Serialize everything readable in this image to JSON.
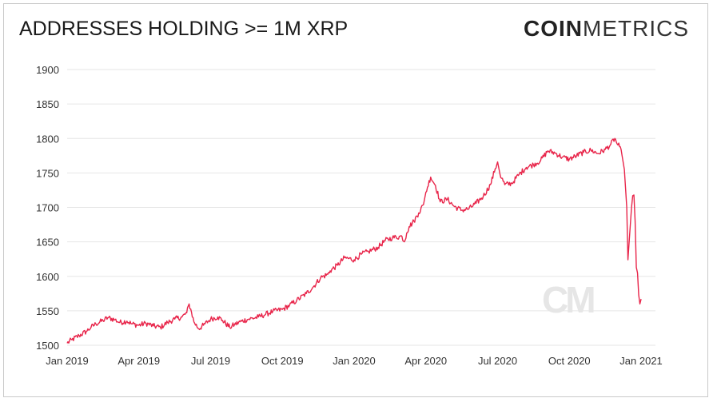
{
  "header": {
    "title": "ADDRESSES HOLDING >= 1M XRP",
    "brand_bold": "COIN",
    "brand_light": "METRICS",
    "watermark": "CM"
  },
  "chart_data": {
    "type": "line",
    "title": "ADDRESSES HOLDING >= 1M XRP",
    "xlabel": "",
    "ylabel": "",
    "ylim": [
      1500,
      1900
    ],
    "yticks": [
      1500,
      1550,
      1600,
      1650,
      1700,
      1750,
      1800,
      1850,
      1900
    ],
    "xlim": [
      0,
      24.6
    ],
    "xticks": [
      {
        "label": "Jan 2019",
        "month": 0
      },
      {
        "label": "Apr 2019",
        "month": 3
      },
      {
        "label": "Jul 2019",
        "month": 6
      },
      {
        "label": "Oct 2019",
        "month": 9
      },
      {
        "label": "Jan 2020",
        "month": 12
      },
      {
        "label": "Apr 2020",
        "month": 15
      },
      {
        "label": "Jul 2020",
        "month": 18
      },
      {
        "label": "Oct 2020",
        "month": 21
      },
      {
        "label": "Jan 2021",
        "month": 24
      }
    ],
    "grid": true,
    "line_color": "#e8254a",
    "series": [
      {
        "name": "Addresses holding >= 1M XRP",
        "x": [
          0,
          0.2,
          0.5,
          0.8,
          1.0,
          1.2,
          1.5,
          1.7,
          2.0,
          2.2,
          2.5,
          2.7,
          3.0,
          3.3,
          3.6,
          3.9,
          4.2,
          4.5,
          4.8,
          5.0,
          5.1,
          5.2,
          5.3,
          5.5,
          5.7,
          6.0,
          6.3,
          6.5,
          6.8,
          7.0,
          7.3,
          7.6,
          8.0,
          8.3,
          8.6,
          9.0,
          9.3,
          9.6,
          10.0,
          10.3,
          10.6,
          10.9,
          11.0,
          11.3,
          11.6,
          12.0,
          12.3,
          12.6,
          13.0,
          13.3,
          13.6,
          14.0,
          14.1,
          14.2,
          14.3,
          14.5,
          14.7,
          14.9,
          15.0,
          15.2,
          15.4,
          15.6,
          15.9,
          16.2,
          16.5,
          16.8,
          17.1,
          17.4,
          17.7,
          17.9,
          18.0,
          18.1,
          18.3,
          18.6,
          18.9,
          19.2,
          19.5,
          19.8,
          20.1,
          20.4,
          20.7,
          21.0,
          21.3,
          21.6,
          21.9,
          22.2,
          22.5,
          22.7,
          22.9,
          23.0,
          23.1,
          23.2,
          23.3,
          23.4,
          23.45,
          23.5,
          23.6,
          23.65,
          23.7,
          23.75,
          23.8,
          23.85,
          23.9,
          23.95,
          24.0
        ],
        "y": [
          1503,
          1508,
          1514,
          1520,
          1526,
          1531,
          1536,
          1540,
          1537,
          1533,
          1535,
          1531,
          1529,
          1532,
          1528,
          1526,
          1533,
          1538,
          1541,
          1547,
          1560,
          1548,
          1534,
          1524,
          1529,
          1538,
          1541,
          1536,
          1526,
          1530,
          1535,
          1538,
          1541,
          1545,
          1549,
          1552,
          1558,
          1565,
          1575,
          1585,
          1598,
          1603,
          1608,
          1616,
          1627,
          1624,
          1632,
          1636,
          1642,
          1652,
          1656,
          1658,
          1650,
          1663,
          1672,
          1680,
          1692,
          1704,
          1722,
          1744,
          1732,
          1708,
          1712,
          1701,
          1696,
          1698,
          1706,
          1716,
          1733,
          1756,
          1766,
          1748,
          1733,
          1735,
          1748,
          1758,
          1762,
          1768,
          1782,
          1779,
          1773,
          1770,
          1775,
          1780,
          1783,
          1778,
          1784,
          1790,
          1800,
          1792,
          1788,
          1776,
          1755,
          1700,
          1624,
          1650,
          1700,
          1717,
          1718,
          1680,
          1613,
          1605,
          1573,
          1560,
          1567
        ]
      }
    ]
  }
}
